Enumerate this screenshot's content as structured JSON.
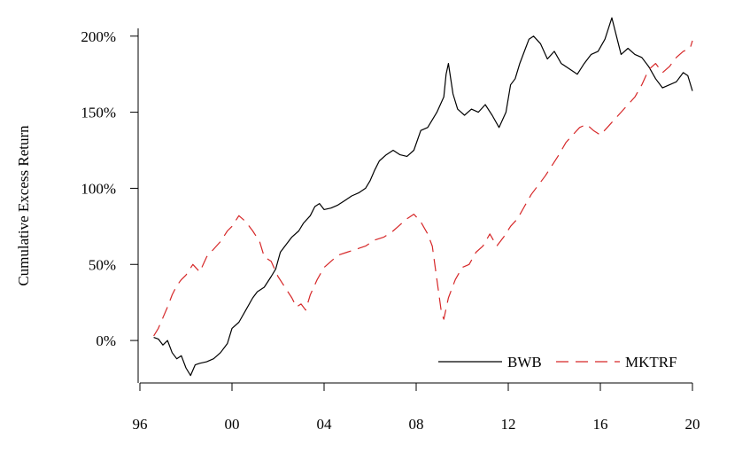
{
  "chart_data": {
    "type": "line",
    "title": "",
    "xlabel": "",
    "ylabel": "Cumulative Excess Return",
    "xlim": [
      1996,
      2020
    ],
    "ylim": [
      -25,
      215
    ],
    "x_ticks": [
      1996,
      2000,
      2004,
      2008,
      2012,
      2016,
      2020
    ],
    "x_tick_labels": [
      "96",
      "00",
      "04",
      "08",
      "12",
      "16",
      "20"
    ],
    "y_ticks": [
      0,
      50,
      100,
      150,
      200
    ],
    "y_tick_labels": [
      "0%",
      "50%",
      "100%",
      "150%",
      "200%"
    ],
    "grid": false,
    "legend_position": "bottom-right",
    "series": [
      {
        "name": "BWB",
        "color": "#000000",
        "style": "solid",
        "points": [
          [
            1996.6,
            2
          ],
          [
            1996.8,
            1
          ],
          [
            1997.0,
            -3
          ],
          [
            1997.2,
            0
          ],
          [
            1997.4,
            -8
          ],
          [
            1997.6,
            -12
          ],
          [
            1997.8,
            -10
          ],
          [
            1998.0,
            -18
          ],
          [
            1998.2,
            -23
          ],
          [
            1998.4,
            -16
          ],
          [
            1998.6,
            -15
          ],
          [
            1998.9,
            -14
          ],
          [
            1999.2,
            -12
          ],
          [
            1999.5,
            -8
          ],
          [
            1999.8,
            -2
          ],
          [
            2000.0,
            8
          ],
          [
            2000.3,
            12
          ],
          [
            2000.6,
            20
          ],
          [
            2000.9,
            28
          ],
          [
            2001.1,
            32
          ],
          [
            2001.4,
            35
          ],
          [
            2001.7,
            42
          ],
          [
            2001.9,
            47
          ],
          [
            2002.1,
            58
          ],
          [
            2002.3,
            62
          ],
          [
            2002.6,
            68
          ],
          [
            2002.9,
            72
          ],
          [
            2003.1,
            77
          ],
          [
            2003.4,
            82
          ],
          [
            2003.6,
            88
          ],
          [
            2003.8,
            90
          ],
          [
            2004.0,
            86
          ],
          [
            2004.3,
            87
          ],
          [
            2004.6,
            89
          ],
          [
            2004.9,
            92
          ],
          [
            2005.2,
            95
          ],
          [
            2005.5,
            97
          ],
          [
            2005.8,
            100
          ],
          [
            2006.0,
            105
          ],
          [
            2006.2,
            112
          ],
          [
            2006.4,
            118
          ],
          [
            2006.7,
            122
          ],
          [
            2007.0,
            125
          ],
          [
            2007.3,
            122
          ],
          [
            2007.6,
            121
          ],
          [
            2007.9,
            125
          ],
          [
            2008.2,
            138
          ],
          [
            2008.5,
            140
          ],
          [
            2008.7,
            145
          ],
          [
            2008.9,
            150
          ],
          [
            2009.2,
            160
          ],
          [
            2009.3,
            175
          ],
          [
            2009.4,
            182
          ],
          [
            2009.6,
            162
          ],
          [
            2009.8,
            152
          ],
          [
            2010.1,
            148
          ],
          [
            2010.4,
            152
          ],
          [
            2010.7,
            150
          ],
          [
            2011.0,
            155
          ],
          [
            2011.3,
            148
          ],
          [
            2011.6,
            140
          ],
          [
            2011.9,
            150
          ],
          [
            2012.1,
            168
          ],
          [
            2012.3,
            172
          ],
          [
            2012.5,
            182
          ],
          [
            2012.7,
            190
          ],
          [
            2012.9,
            198
          ],
          [
            2013.1,
            200
          ],
          [
            2013.4,
            195
          ],
          [
            2013.7,
            185
          ],
          [
            2014.0,
            190
          ],
          [
            2014.3,
            182
          ],
          [
            2014.7,
            178
          ],
          [
            2015.0,
            175
          ],
          [
            2015.3,
            182
          ],
          [
            2015.6,
            188
          ],
          [
            2015.9,
            190
          ],
          [
            2016.2,
            198
          ],
          [
            2016.5,
            212
          ],
          [
            2016.7,
            200
          ],
          [
            2016.9,
            188
          ],
          [
            2017.2,
            192
          ],
          [
            2017.5,
            188
          ],
          [
            2017.8,
            186
          ],
          [
            2018.1,
            180
          ],
          [
            2018.4,
            172
          ],
          [
            2018.7,
            166
          ],
          [
            2019.0,
            168
          ],
          [
            2019.3,
            170
          ],
          [
            2019.6,
            176
          ],
          [
            2019.8,
            174
          ],
          [
            2020.0,
            164
          ]
        ]
      },
      {
        "name": "MKTRF",
        "color": "#d62728",
        "style": "dashed",
        "points": [
          [
            1996.6,
            3
          ],
          [
            1996.8,
            8
          ],
          [
            1997.0,
            15
          ],
          [
            1997.2,
            22
          ],
          [
            1997.4,
            30
          ],
          [
            1997.6,
            36
          ],
          [
            1997.8,
            40
          ],
          [
            1998.0,
            43
          ],
          [
            1998.3,
            50
          ],
          [
            1998.6,
            45
          ],
          [
            1998.9,
            55
          ],
          [
            1999.2,
            60
          ],
          [
            1999.5,
            65
          ],
          [
            1999.8,
            72
          ],
          [
            2000.0,
            75
          ],
          [
            2000.3,
            82
          ],
          [
            2000.6,
            78
          ],
          [
            2000.9,
            72
          ],
          [
            2001.2,
            65
          ],
          [
            2001.4,
            55
          ],
          [
            2001.7,
            52
          ],
          [
            2002.0,
            42
          ],
          [
            2002.3,
            35
          ],
          [
            2002.6,
            28
          ],
          [
            2002.8,
            22
          ],
          [
            2003.0,
            24
          ],
          [
            2003.2,
            20
          ],
          [
            2003.4,
            30
          ],
          [
            2003.7,
            40
          ],
          [
            2004.0,
            48
          ],
          [
            2004.3,
            52
          ],
          [
            2004.6,
            56
          ],
          [
            2005.0,
            58
          ],
          [
            2005.4,
            60
          ],
          [
            2005.8,
            62
          ],
          [
            2006.2,
            66
          ],
          [
            2006.6,
            68
          ],
          [
            2007.0,
            72
          ],
          [
            2007.3,
            76
          ],
          [
            2007.6,
            80
          ],
          [
            2007.9,
            83
          ],
          [
            2008.2,
            78
          ],
          [
            2008.5,
            70
          ],
          [
            2008.7,
            62
          ],
          [
            2008.9,
            40
          ],
          [
            2009.1,
            18
          ],
          [
            2009.2,
            14
          ],
          [
            2009.4,
            28
          ],
          [
            2009.7,
            40
          ],
          [
            2010.0,
            48
          ],
          [
            2010.3,
            50
          ],
          [
            2010.6,
            58
          ],
          [
            2010.9,
            62
          ],
          [
            2011.2,
            70
          ],
          [
            2011.5,
            62
          ],
          [
            2011.8,
            68
          ],
          [
            2012.1,
            75
          ],
          [
            2012.4,
            80
          ],
          [
            2012.7,
            88
          ],
          [
            2013.0,
            96
          ],
          [
            2013.3,
            102
          ],
          [
            2013.6,
            108
          ],
          [
            2013.9,
            115
          ],
          [
            2014.2,
            122
          ],
          [
            2014.5,
            130
          ],
          [
            2014.8,
            135
          ],
          [
            2015.1,
            140
          ],
          [
            2015.4,
            142
          ],
          [
            2015.7,
            138
          ],
          [
            2016.0,
            135
          ],
          [
            2016.3,
            140
          ],
          [
            2016.6,
            145
          ],
          [
            2016.9,
            150
          ],
          [
            2017.2,
            155
          ],
          [
            2017.5,
            160
          ],
          [
            2017.8,
            168
          ],
          [
            2018.1,
            178
          ],
          [
            2018.4,
            182
          ],
          [
            2018.7,
            176
          ],
          [
            2019.0,
            180
          ],
          [
            2019.3,
            186
          ],
          [
            2019.6,
            190
          ],
          [
            2019.9,
            192
          ],
          [
            2020.0,
            197
          ]
        ]
      }
    ]
  }
}
